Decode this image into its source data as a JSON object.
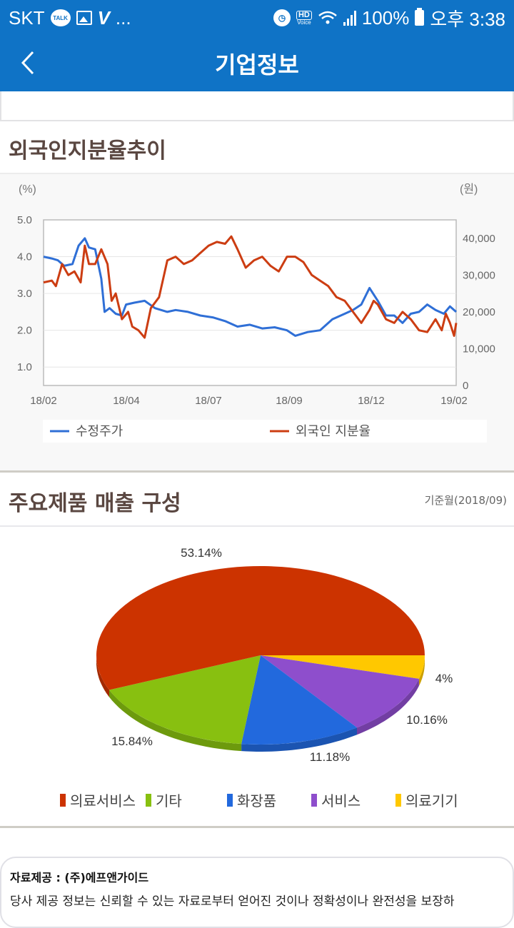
{
  "status_bar": {
    "carrier": "SKT",
    "talk_badge": "TALK",
    "more": "...",
    "hd_label": "HD",
    "voice_label": "Voice",
    "battery": "100%",
    "time": "오후 3:38"
  },
  "app_bar": {
    "title": "기업정보",
    "back_icon": "chevron-left-icon"
  },
  "foreign_ownership": {
    "title": "외국인지분율추이",
    "left_unit": "(%)",
    "right_unit": "(원)",
    "legend": [
      "수정주가",
      "외국인 지분율"
    ]
  },
  "sales_composition": {
    "title": "주요제품 매출 구성",
    "base_month": "기준월(2018/09)",
    "legend": [
      "의료서비스",
      "기타",
      "화장품",
      "서비스",
      "의료기기"
    ]
  },
  "footer": {
    "source": "자료제공 : (주)에프앤가이드",
    "disclaimer": "당사 제공 정보는 신뢰할 수 있는 자료로부터 얻어진 것이나 정확성이나 완전성을 보장하"
  },
  "colors": {
    "brand_blue": "#0f73c6",
    "title_brown": "#5a4741",
    "price_line": "#2f6fd6",
    "foreign_line": "#cc3d12",
    "pie_medical_service": "#cc3300",
    "pie_other": "#88c010",
    "pie_cosmetics": "#2269dd",
    "pie_service": "#8e4ecc",
    "pie_medical_device": "#ffc800"
  },
  "chart_data": [
    {
      "type": "line",
      "title": "외국인지분율추이",
      "x": [
        "18/02",
        "18/04",
        "18/07",
        "18/09",
        "18/12",
        "19/02"
      ],
      "xlabel": "",
      "ylabel_left": "(%)",
      "ylabel_right": "(원)",
      "ylim_left": [
        0.5,
        5.0
      ],
      "yticks_left": [
        1.0,
        2.0,
        3.0,
        4.0,
        5.0
      ],
      "ylim_right": [
        0,
        45000
      ],
      "yticks_right": [
        0,
        10000,
        20000,
        30000,
        40000
      ],
      "grid": true,
      "legend_position": "bottom",
      "series": [
        {
          "name": "수정주가",
          "axis": "right",
          "color": "#2f6fd6",
          "points_pct_axis": [
            [
              0.0,
              4.0
            ],
            [
              0.02,
              3.95
            ],
            [
              0.035,
              3.9
            ],
            [
              0.05,
              3.75
            ],
            [
              0.07,
              3.8
            ],
            [
              0.085,
              4.3
            ],
            [
              0.1,
              4.5
            ],
            [
              0.11,
              4.25
            ],
            [
              0.125,
              4.2
            ],
            [
              0.14,
              3.4
            ],
            [
              0.148,
              2.5
            ],
            [
              0.16,
              2.6
            ],
            [
              0.175,
              2.45
            ],
            [
              0.19,
              2.4
            ],
            [
              0.2,
              2.7
            ],
            [
              0.22,
              2.75
            ],
            [
              0.245,
              2.8
            ],
            [
              0.27,
              2.6
            ],
            [
              0.3,
              2.5
            ],
            [
              0.32,
              2.55
            ],
            [
              0.35,
              2.5
            ],
            [
              0.38,
              2.4
            ],
            [
              0.41,
              2.35
            ],
            [
              0.44,
              2.25
            ],
            [
              0.47,
              2.1
            ],
            [
              0.5,
              2.15
            ],
            [
              0.53,
              2.05
            ],
            [
              0.56,
              2.08
            ],
            [
              0.59,
              2.0
            ],
            [
              0.61,
              1.85
            ],
            [
              0.64,
              1.95
            ],
            [
              0.67,
              2.0
            ],
            [
              0.7,
              2.3
            ],
            [
              0.73,
              2.45
            ],
            [
              0.75,
              2.55
            ],
            [
              0.77,
              2.7
            ],
            [
              0.79,
              3.15
            ],
            [
              0.81,
              2.8
            ],
            [
              0.83,
              2.4
            ],
            [
              0.85,
              2.4
            ],
            [
              0.87,
              2.2
            ],
            [
              0.89,
              2.45
            ],
            [
              0.91,
              2.5
            ],
            [
              0.93,
              2.7
            ],
            [
              0.95,
              2.55
            ],
            [
              0.97,
              2.45
            ],
            [
              0.985,
              2.65
            ],
            [
              1.0,
              2.5
            ]
          ]
        },
        {
          "name": "외국인 지분율",
          "axis": "left",
          "color": "#cc3d12",
          "points_pct_axis": [
            [
              0.0,
              3.3
            ],
            [
              0.02,
              3.35
            ],
            [
              0.03,
              3.2
            ],
            [
              0.045,
              3.8
            ],
            [
              0.06,
              3.5
            ],
            [
              0.075,
              3.6
            ],
            [
              0.09,
              3.3
            ],
            [
              0.1,
              4.3
            ],
            [
              0.11,
              3.8
            ],
            [
              0.125,
              3.8
            ],
            [
              0.14,
              4.2
            ],
            [
              0.155,
              3.8
            ],
            [
              0.165,
              2.8
            ],
            [
              0.175,
              3.0
            ],
            [
              0.19,
              2.3
            ],
            [
              0.205,
              2.5
            ],
            [
              0.215,
              2.1
            ],
            [
              0.23,
              2.0
            ],
            [
              0.245,
              1.8
            ],
            [
              0.26,
              2.6
            ],
            [
              0.28,
              2.9
            ],
            [
              0.3,
              3.9
            ],
            [
              0.32,
              4.0
            ],
            [
              0.34,
              3.8
            ],
            [
              0.36,
              3.9
            ],
            [
              0.38,
              4.1
            ],
            [
              0.4,
              4.3
            ],
            [
              0.42,
              4.4
            ],
            [
              0.44,
              4.35
            ],
            [
              0.455,
              4.55
            ],
            [
              0.47,
              4.2
            ],
            [
              0.49,
              3.7
            ],
            [
              0.51,
              3.9
            ],
            [
              0.53,
              4.0
            ],
            [
              0.55,
              3.75
            ],
            [
              0.57,
              3.6
            ],
            [
              0.59,
              4.0
            ],
            [
              0.61,
              4.0
            ],
            [
              0.63,
              3.85
            ],
            [
              0.65,
              3.5
            ],
            [
              0.67,
              3.35
            ],
            [
              0.69,
              3.2
            ],
            [
              0.71,
              2.9
            ],
            [
              0.73,
              2.8
            ],
            [
              0.75,
              2.5
            ],
            [
              0.77,
              2.2
            ],
            [
              0.79,
              2.55
            ],
            [
              0.8,
              2.8
            ],
            [
              0.81,
              2.7
            ],
            [
              0.83,
              2.3
            ],
            [
              0.85,
              2.2
            ],
            [
              0.87,
              2.5
            ],
            [
              0.89,
              2.3
            ],
            [
              0.91,
              2.0
            ],
            [
              0.93,
              1.95
            ],
            [
              0.95,
              2.3
            ],
            [
              0.965,
              2.0
            ],
            [
              0.975,
              2.45
            ],
            [
              0.985,
              2.2
            ],
            [
              0.995,
              1.85
            ],
            [
              1.0,
              2.2
            ]
          ]
        }
      ]
    },
    {
      "type": "pie",
      "title": "주요제품 매출 구성",
      "subtitle": "기준월(2018/09)",
      "categories": [
        "의료서비스",
        "기타",
        "화장품",
        "서비스",
        "의료기기"
      ],
      "values": [
        53.14,
        15.84,
        11.18,
        10.16,
        4.0
      ],
      "labels": [
        "53.14%",
        "15.84%",
        "11.18%",
        "10.16%",
        "4%"
      ],
      "colors": [
        "#cc3300",
        "#88c010",
        "#2269dd",
        "#8e4ecc",
        "#ffc800"
      ],
      "legend_position": "bottom",
      "style": "3d"
    }
  ]
}
